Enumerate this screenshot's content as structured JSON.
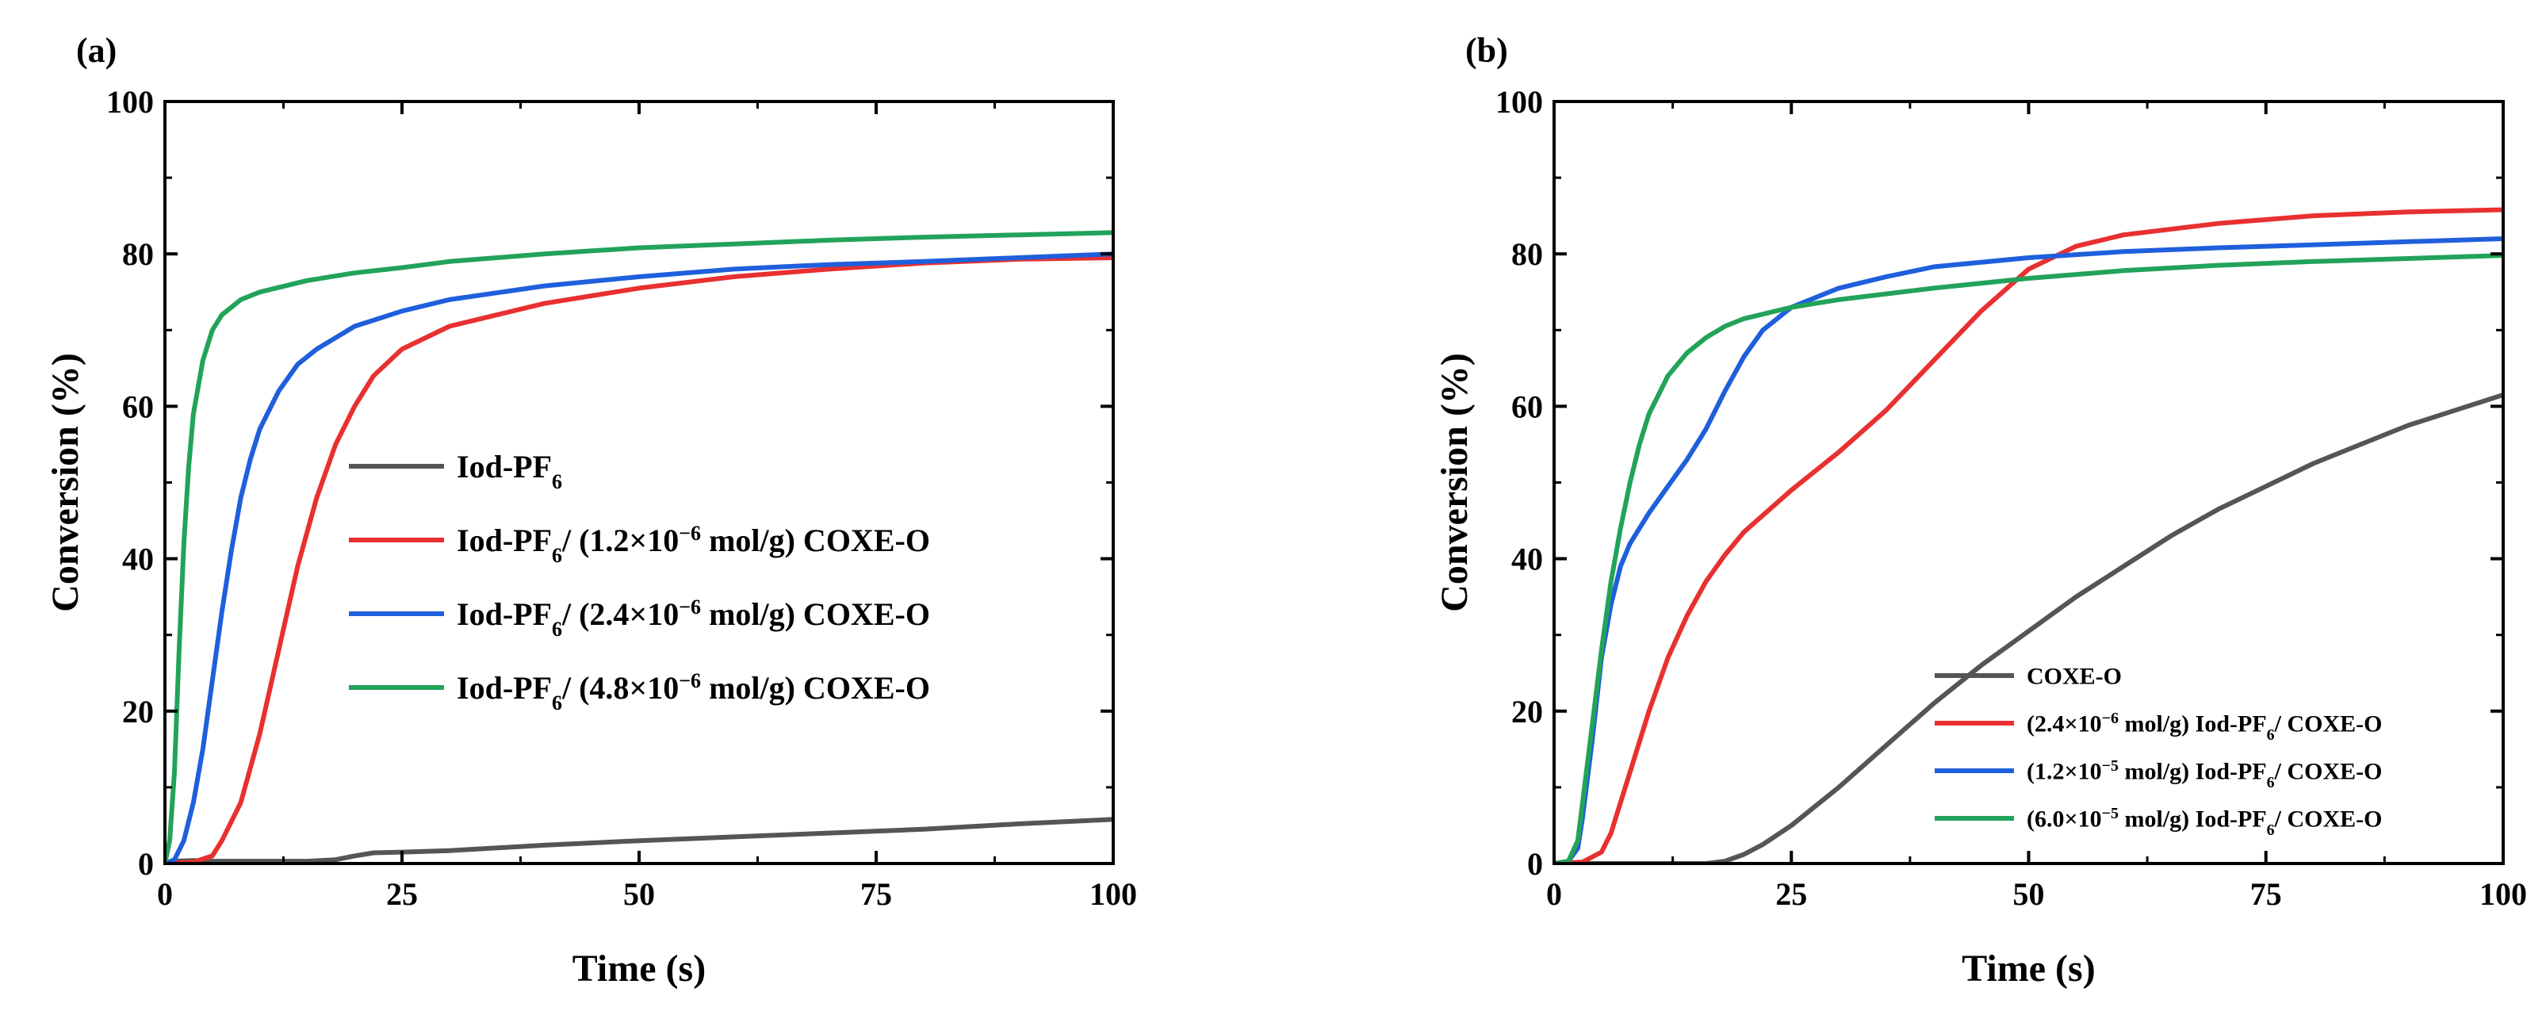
{
  "chart_data": [
    {
      "type": "line",
      "panel_label": "(a)",
      "xlabel": "Time (s)",
      "ylabel": "Conversion (%)",
      "xlim": [
        0,
        100
      ],
      "ylim": [
        0,
        100
      ],
      "xticks": [
        0,
        25,
        50,
        75,
        100
      ],
      "yticks": [
        0,
        20,
        40,
        60,
        80,
        100
      ],
      "legend_position": "center-right",
      "series": [
        {
          "name": "Iod-PF6",
          "legend": {
            "pre": "Iod-PF",
            "sub": "6",
            "mid": "",
            "sup": "",
            "post": ""
          },
          "color": "#555555",
          "points": [
            [
              0,
              0
            ],
            [
              1,
              0.3
            ],
            [
              3,
              0.4
            ],
            [
              5,
              0.3
            ],
            [
              10,
              0.3
            ],
            [
              15,
              0.3
            ],
            [
              18,
              0.5
            ],
            [
              20,
              1
            ],
            [
              22,
              1.4
            ],
            [
              25,
              1.5
            ],
            [
              30,
              1.7
            ],
            [
              40,
              2.4
            ],
            [
              50,
              3
            ],
            [
              60,
              3.5
            ],
            [
              70,
              4
            ],
            [
              80,
              4.5
            ],
            [
              90,
              5.2
            ],
            [
              100,
              5.8
            ]
          ]
        },
        {
          "name": "Iod-PF6/ (1.2×10−6 mol/g) COXE-O",
          "legend": {
            "pre": "Iod-PF",
            "sub": "6",
            "mid": "/ (1.2×10",
            "sup": "−6",
            "post": " mol/g) COXE-O"
          },
          "color": "#e83030",
          "points": [
            [
              0,
              0
            ],
            [
              3,
              0.2
            ],
            [
              5,
              1
            ],
            [
              6,
              3
            ],
            [
              8,
              8
            ],
            [
              10,
              17
            ],
            [
              12,
              28
            ],
            [
              14,
              39
            ],
            [
              16,
              48
            ],
            [
              18,
              55
            ],
            [
              20,
              60
            ],
            [
              22,
              64
            ],
            [
              25,
              67.5
            ],
            [
              30,
              70.5
            ],
            [
              35,
              72
            ],
            [
              40,
              73.5
            ],
            [
              50,
              75.5
            ],
            [
              60,
              77
            ],
            [
              70,
              78
            ],
            [
              80,
              78.8
            ],
            [
              90,
              79.3
            ],
            [
              100,
              79.5
            ]
          ]
        },
        {
          "name": "Iod-PF6/ (2.4×10−6 mol/g) COXE-O",
          "legend": {
            "pre": "Iod-PF",
            "sub": "6",
            "mid": "/ (2.4×10",
            "sup": "−6",
            "post": " mol/g) COXE-O"
          },
          "color": "#1f5fdc",
          "points": [
            [
              0,
              0
            ],
            [
              1,
              0.5
            ],
            [
              2,
              3
            ],
            [
              3,
              8
            ],
            [
              4,
              15
            ],
            [
              5,
              24
            ],
            [
              6,
              33
            ],
            [
              7,
              41
            ],
            [
              8,
              48
            ],
            [
              9,
              53
            ],
            [
              10,
              57
            ],
            [
              12,
              62
            ],
            [
              14,
              65.5
            ],
            [
              16,
              67.5
            ],
            [
              18,
              69
            ],
            [
              20,
              70.5
            ],
            [
              25,
              72.5
            ],
            [
              30,
              74
            ],
            [
              40,
              75.8
            ],
            [
              50,
              77
            ],
            [
              60,
              78
            ],
            [
              70,
              78.6
            ],
            [
              80,
              79
            ],
            [
              90,
              79.5
            ],
            [
              100,
              80
            ]
          ]
        },
        {
          "name": "Iod-PF6/ (4.8×10−6 mol/g) COXE-O",
          "legend": {
            "pre": "Iod-PF",
            "sub": "6",
            "mid": "/ (4.8×10",
            "sup": "−6",
            "post": " mol/g) COXE-O"
          },
          "color": "#22a35a",
          "points": [
            [
              0,
              0
            ],
            [
              0.5,
              3
            ],
            [
              1,
              12
            ],
            [
              1.5,
              28
            ],
            [
              2,
              42
            ],
            [
              2.5,
              52
            ],
            [
              3,
              59
            ],
            [
              4,
              66
            ],
            [
              5,
              70
            ],
            [
              6,
              72
            ],
            [
              8,
              74
            ],
            [
              10,
              75
            ],
            [
              15,
              76.5
            ],
            [
              20,
              77.5
            ],
            [
              25,
              78.2
            ],
            [
              30,
              79
            ],
            [
              40,
              80
            ],
            [
              50,
              80.8
            ],
            [
              60,
              81.3
            ],
            [
              70,
              81.8
            ],
            [
              80,
              82.2
            ],
            [
              90,
              82.5
            ],
            [
              100,
              82.8
            ]
          ]
        }
      ]
    },
    {
      "type": "line",
      "panel_label": "(b)",
      "xlabel": "Time (s)",
      "ylabel": "Conversion (%)",
      "xlim": [
        0,
        100
      ],
      "ylim": [
        0,
        100
      ],
      "xticks": [
        0,
        25,
        50,
        75,
        100
      ],
      "yticks": [
        0,
        20,
        40,
        60,
        80,
        100
      ],
      "legend_position": "bottom-right",
      "series": [
        {
          "name": "COXE-O",
          "legend": {
            "pre": "COXE-O",
            "sub": "",
            "mid": "",
            "sup": "",
            "post": ""
          },
          "color": "#555555",
          "points": [
            [
              0,
              0
            ],
            [
              16,
              0
            ],
            [
              18,
              0.3
            ],
            [
              20,
              1.2
            ],
            [
              22,
              2.5
            ],
            [
              25,
              5
            ],
            [
              30,
              10
            ],
            [
              35,
              15.5
            ],
            [
              40,
              21
            ],
            [
              45,
              26
            ],
            [
              50,
              30.5
            ],
            [
              55,
              35
            ],
            [
              60,
              39
            ],
            [
              65,
              43
            ],
            [
              70,
              46.5
            ],
            [
              75,
              49.5
            ],
            [
              80,
              52.5
            ],
            [
              85,
              55
            ],
            [
              90,
              57.5
            ],
            [
              95,
              59.5
            ],
            [
              100,
              61.5
            ]
          ]
        },
        {
          "name": "(2.4×10−6 mol/g) Iod-PF6/ COXE-O",
          "legend": {
            "pre": "(2.4×10",
            "sup": "−6",
            "mid": " mol/g) Iod-PF",
            "sub": "6",
            "post": "/ COXE-O"
          },
          "color": "#e83030",
          "points": [
            [
              0,
              0
            ],
            [
              3,
              0.2
            ],
            [
              5,
              1.5
            ],
            [
              6,
              4
            ],
            [
              7,
              8
            ],
            [
              8,
              12
            ],
            [
              10,
              20
            ],
            [
              12,
              27
            ],
            [
              14,
              32.5
            ],
            [
              16,
              37
            ],
            [
              18,
              40.5
            ],
            [
              20,
              43.5
            ],
            [
              25,
              49
            ],
            [
              30,
              54
            ],
            [
              35,
              59.5
            ],
            [
              40,
              66
            ],
            [
              45,
              72.5
            ],
            [
              50,
              78
            ],
            [
              55,
              81
            ],
            [
              60,
              82.5
            ],
            [
              70,
              84
            ],
            [
              80,
              85
            ],
            [
              90,
              85.5
            ],
            [
              100,
              85.8
            ]
          ]
        },
        {
          "name": "(1.2×10−5 mol/g) Iod-PF6/ COXE-O",
          "legend": {
            "pre": "(1.2×10",
            "sup": "−5",
            "mid": " mol/g) Iod-PF",
            "sub": "6",
            "post": "/ COXE-O"
          },
          "color": "#1f5fdc",
          "points": [
            [
              0,
              0
            ],
            [
              1.5,
              0.3
            ],
            [
              2.5,
              2
            ],
            [
              3,
              6
            ],
            [
              4,
              16
            ],
            [
              5,
              27
            ],
            [
              6,
              34
            ],
            [
              7,
              39
            ],
            [
              8,
              42
            ],
            [
              10,
              46
            ],
            [
              12,
              49.5
            ],
            [
              14,
              53
            ],
            [
              16,
              57
            ],
            [
              18,
              62
            ],
            [
              20,
              66.5
            ],
            [
              22,
              70
            ],
            [
              25,
              73
            ],
            [
              30,
              75.5
            ],
            [
              35,
              77
            ],
            [
              40,
              78.3
            ],
            [
              50,
              79.5
            ],
            [
              60,
              80.3
            ],
            [
              70,
              80.8
            ],
            [
              80,
              81.2
            ],
            [
              90,
              81.6
            ],
            [
              100,
              82
            ]
          ]
        },
        {
          "name": "(6.0×10−5 mol/g) Iod-PF6/ COXE-O",
          "legend": {
            "pre": "(6.0×10",
            "sup": "−5",
            "mid": " mol/g) Iod-PF",
            "sub": "6",
            "post": "/ COXE-O"
          },
          "color": "#22a35a",
          "points": [
            [
              0,
              0
            ],
            [
              1.5,
              0.3
            ],
            [
              2.5,
              3
            ],
            [
              3,
              8
            ],
            [
              4,
              18
            ],
            [
              5,
              28
            ],
            [
              6,
              37
            ],
            [
              7,
              44
            ],
            [
              8,
              50
            ],
            [
              9,
              55
            ],
            [
              10,
              59
            ],
            [
              12,
              64
            ],
            [
              14,
              67
            ],
            [
              16,
              69
            ],
            [
              18,
              70.5
            ],
            [
              20,
              71.5
            ],
            [
              25,
              73
            ],
            [
              30,
              74
            ],
            [
              40,
              75.5
            ],
            [
              50,
              76.8
            ],
            [
              60,
              77.8
            ],
            [
              70,
              78.5
            ],
            [
              80,
              79
            ],
            [
              90,
              79.4
            ],
            [
              100,
              79.8
            ]
          ]
        }
      ]
    }
  ]
}
